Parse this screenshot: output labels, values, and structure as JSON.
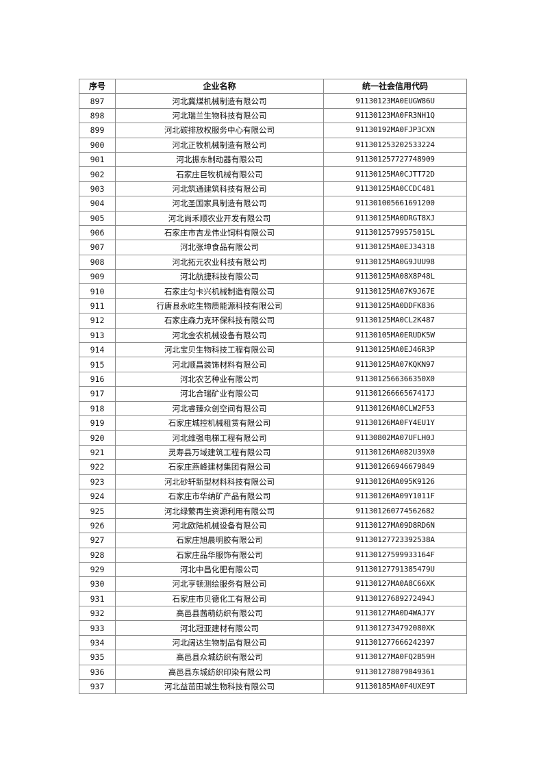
{
  "table": {
    "headers": [
      "序号",
      "企业名称",
      "统一社会信用代码"
    ],
    "rows": [
      [
        "897",
        "河北冀煤机械制造有限公司",
        "91130123MA0EUGW86U"
      ],
      [
        "898",
        "河北瑞兰生物科技有限公司",
        "91130123MA0FR3NH1Q"
      ],
      [
        "899",
        "河北碳排放权服务中心有限公司",
        "91130192MA0FJP3CXN"
      ],
      [
        "900",
        "河北正牧机械制造有限公司",
        "911301253202533224"
      ],
      [
        "901",
        "河北振东制动器有限公司",
        "911301257727748909"
      ],
      [
        "902",
        "石家庄巨牧机械有限公司",
        "91130125MA0CJTT72D"
      ],
      [
        "903",
        "河北筑通建筑科技有限公司",
        "91130125MA0CCDC481"
      ],
      [
        "904",
        "河北圣国家具制造有限公司",
        "911301005661691200"
      ],
      [
        "905",
        "河北尚禾顺农业开发有限公司",
        "91130125MA0DRGT8XJ"
      ],
      [
        "906",
        "石家庄市吉龙伟业饲料有限公司",
        "91130125799575015L"
      ],
      [
        "907",
        "河北张坤食品有限公司",
        "91130125MA0EJ34318"
      ],
      [
        "908",
        "河北拓元农业科技有限公司",
        "91130125MA0G9JUU98"
      ],
      [
        "909",
        "河北航捷科技有限公司",
        "91130125MA08X8P48L"
      ],
      [
        "910",
        "石家庄匀卡兴机械制造有限公司",
        "91130125MA07K9J67E"
      ],
      [
        "911",
        "行唐县永屹生物质能源科技有限公司",
        "91130125MA0DDFK836"
      ],
      [
        "912",
        "石家庄森力克环保科技有限公司",
        "91130125MA0CL2K487"
      ],
      [
        "913",
        "河北金农机械设备有限公司",
        "91130105MA0ERUDK5W"
      ],
      [
        "914",
        "河北宝贝生物科技工程有限公司",
        "91130125MA0EJ46R3P"
      ],
      [
        "915",
        "河北顺昌装饰材料有限公司",
        "91130125MA07KQKN97"
      ],
      [
        "916",
        "河北农艺种业有限公司",
        "91130125663663​50X0"
      ],
      [
        "917",
        "河北合瑞矿业有限公司",
        "91130126666567417J"
      ],
      [
        "918",
        "河北睿臻众创空间有限公司",
        "91130126MA0CLW2F53"
      ],
      [
        "919",
        "石家庄城控机械租赁有限公司",
        "91130126MA0FY4EU1Y"
      ],
      [
        "920",
        "河北维强电梯工程有限公司",
        "91130802MA07UFLH0J"
      ],
      [
        "921",
        "灵寿县万域建筑工程有限公司",
        "91130126MA082U39X0"
      ],
      [
        "922",
        "石家庄燕峰建材集团有限公司",
        "911301266946679849"
      ],
      [
        "923",
        "河北砂轩新型材料科技有限公司",
        "91130126MA095K9126"
      ],
      [
        "924",
        "石家庄市华纳矿产品有限公司",
        "91130126MA09Y1011F"
      ],
      [
        "925",
        "河北绿蘩再生资源利用有限公司",
        "911301260774562682"
      ],
      [
        "926",
        "河北欧陆机械设备有限公司",
        "91130127MA09D8RD6N"
      ],
      [
        "927",
        "石家庄旭晨明胶有限公司",
        "91130127723392538A"
      ],
      [
        "928",
        "石家庄品华服饰有限公司",
        "91130127599933164F"
      ],
      [
        "929",
        "河北中昌化肥有限公司",
        "91130127791385479U"
      ],
      [
        "930",
        "河北亨顿测绘服务有限公司",
        "91130127MA0A8C66XK"
      ],
      [
        "931",
        "石家庄市贝德化工有限公司",
        "91130127689272494J"
      ],
      [
        "932",
        "高邑县茜萌纺织有限公司",
        "91130127MA0D4WAJ7Y"
      ],
      [
        "933",
        "河北冠亚建材有限公司",
        "9113012734792080XK"
      ],
      [
        "934",
        "河北阔达生物制品有限公司",
        "911301277666242397"
      ],
      [
        "935",
        "高邑县众城纺织有限公司",
        "91130127MA0FQ2B59H"
      ],
      [
        "936",
        "高邑县东城纺织印染有限公司",
        "911301278079849361"
      ],
      [
        "937",
        "河北益茁田城生物科技有限公司",
        "91130185MA0F4UXE9T"
      ]
    ]
  }
}
